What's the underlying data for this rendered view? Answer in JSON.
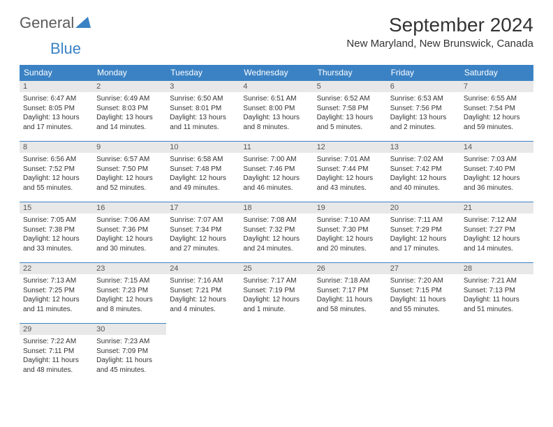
{
  "logo": {
    "part1": "General",
    "part2": "Blue"
  },
  "title": "September 2024",
  "location": "New Maryland, New Brunswick, Canada",
  "colors": {
    "header_bg": "#3b82c4",
    "header_text": "#ffffff",
    "daynum_bg": "#e8e8e8",
    "text": "#333333",
    "border": "#3b82c4"
  },
  "weekdays": [
    "Sunday",
    "Monday",
    "Tuesday",
    "Wednesday",
    "Thursday",
    "Friday",
    "Saturday"
  ],
  "weeks": [
    [
      {
        "n": "1",
        "sr": "Sunrise: 6:47 AM",
        "ss": "Sunset: 8:05 PM",
        "dl": "Daylight: 13 hours and 17 minutes."
      },
      {
        "n": "2",
        "sr": "Sunrise: 6:49 AM",
        "ss": "Sunset: 8:03 PM",
        "dl": "Daylight: 13 hours and 14 minutes."
      },
      {
        "n": "3",
        "sr": "Sunrise: 6:50 AM",
        "ss": "Sunset: 8:01 PM",
        "dl": "Daylight: 13 hours and 11 minutes."
      },
      {
        "n": "4",
        "sr": "Sunrise: 6:51 AM",
        "ss": "Sunset: 8:00 PM",
        "dl": "Daylight: 13 hours and 8 minutes."
      },
      {
        "n": "5",
        "sr": "Sunrise: 6:52 AM",
        "ss": "Sunset: 7:58 PM",
        "dl": "Daylight: 13 hours and 5 minutes."
      },
      {
        "n": "6",
        "sr": "Sunrise: 6:53 AM",
        "ss": "Sunset: 7:56 PM",
        "dl": "Daylight: 13 hours and 2 minutes."
      },
      {
        "n": "7",
        "sr": "Sunrise: 6:55 AM",
        "ss": "Sunset: 7:54 PM",
        "dl": "Daylight: 12 hours and 59 minutes."
      }
    ],
    [
      {
        "n": "8",
        "sr": "Sunrise: 6:56 AM",
        "ss": "Sunset: 7:52 PM",
        "dl": "Daylight: 12 hours and 55 minutes."
      },
      {
        "n": "9",
        "sr": "Sunrise: 6:57 AM",
        "ss": "Sunset: 7:50 PM",
        "dl": "Daylight: 12 hours and 52 minutes."
      },
      {
        "n": "10",
        "sr": "Sunrise: 6:58 AM",
        "ss": "Sunset: 7:48 PM",
        "dl": "Daylight: 12 hours and 49 minutes."
      },
      {
        "n": "11",
        "sr": "Sunrise: 7:00 AM",
        "ss": "Sunset: 7:46 PM",
        "dl": "Daylight: 12 hours and 46 minutes."
      },
      {
        "n": "12",
        "sr": "Sunrise: 7:01 AM",
        "ss": "Sunset: 7:44 PM",
        "dl": "Daylight: 12 hours and 43 minutes."
      },
      {
        "n": "13",
        "sr": "Sunrise: 7:02 AM",
        "ss": "Sunset: 7:42 PM",
        "dl": "Daylight: 12 hours and 40 minutes."
      },
      {
        "n": "14",
        "sr": "Sunrise: 7:03 AM",
        "ss": "Sunset: 7:40 PM",
        "dl": "Daylight: 12 hours and 36 minutes."
      }
    ],
    [
      {
        "n": "15",
        "sr": "Sunrise: 7:05 AM",
        "ss": "Sunset: 7:38 PM",
        "dl": "Daylight: 12 hours and 33 minutes."
      },
      {
        "n": "16",
        "sr": "Sunrise: 7:06 AM",
        "ss": "Sunset: 7:36 PM",
        "dl": "Daylight: 12 hours and 30 minutes."
      },
      {
        "n": "17",
        "sr": "Sunrise: 7:07 AM",
        "ss": "Sunset: 7:34 PM",
        "dl": "Daylight: 12 hours and 27 minutes."
      },
      {
        "n": "18",
        "sr": "Sunrise: 7:08 AM",
        "ss": "Sunset: 7:32 PM",
        "dl": "Daylight: 12 hours and 24 minutes."
      },
      {
        "n": "19",
        "sr": "Sunrise: 7:10 AM",
        "ss": "Sunset: 7:30 PM",
        "dl": "Daylight: 12 hours and 20 minutes."
      },
      {
        "n": "20",
        "sr": "Sunrise: 7:11 AM",
        "ss": "Sunset: 7:29 PM",
        "dl": "Daylight: 12 hours and 17 minutes."
      },
      {
        "n": "21",
        "sr": "Sunrise: 7:12 AM",
        "ss": "Sunset: 7:27 PM",
        "dl": "Daylight: 12 hours and 14 minutes."
      }
    ],
    [
      {
        "n": "22",
        "sr": "Sunrise: 7:13 AM",
        "ss": "Sunset: 7:25 PM",
        "dl": "Daylight: 12 hours and 11 minutes."
      },
      {
        "n": "23",
        "sr": "Sunrise: 7:15 AM",
        "ss": "Sunset: 7:23 PM",
        "dl": "Daylight: 12 hours and 8 minutes."
      },
      {
        "n": "24",
        "sr": "Sunrise: 7:16 AM",
        "ss": "Sunset: 7:21 PM",
        "dl": "Daylight: 12 hours and 4 minutes."
      },
      {
        "n": "25",
        "sr": "Sunrise: 7:17 AM",
        "ss": "Sunset: 7:19 PM",
        "dl": "Daylight: 12 hours and 1 minute."
      },
      {
        "n": "26",
        "sr": "Sunrise: 7:18 AM",
        "ss": "Sunset: 7:17 PM",
        "dl": "Daylight: 11 hours and 58 minutes."
      },
      {
        "n": "27",
        "sr": "Sunrise: 7:20 AM",
        "ss": "Sunset: 7:15 PM",
        "dl": "Daylight: 11 hours and 55 minutes."
      },
      {
        "n": "28",
        "sr": "Sunrise: 7:21 AM",
        "ss": "Sunset: 7:13 PM",
        "dl": "Daylight: 11 hours and 51 minutes."
      }
    ],
    [
      {
        "n": "29",
        "sr": "Sunrise: 7:22 AM",
        "ss": "Sunset: 7:11 PM",
        "dl": "Daylight: 11 hours and 48 minutes."
      },
      {
        "n": "30",
        "sr": "Sunrise: 7:23 AM",
        "ss": "Sunset: 7:09 PM",
        "dl": "Daylight: 11 hours and 45 minutes."
      },
      null,
      null,
      null,
      null,
      null
    ]
  ]
}
